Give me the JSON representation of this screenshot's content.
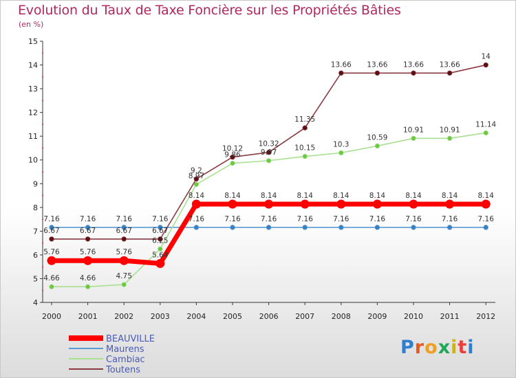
{
  "title": "Evolution du Taux de Taxe Foncière sur les Propriétés Bâties",
  "unit": "(en %)",
  "logo": {
    "letters": [
      "P",
      "r",
      "o",
      "x",
      "i",
      "t",
      "i"
    ],
    "colors": [
      "#2f7fd0",
      "#e85a1c",
      "#f0a020",
      "#1fa85a",
      "#d4b400",
      "#e8403c",
      "#2f7fd0"
    ]
  },
  "chart_data": {
    "type": "line",
    "x": [
      "2000",
      "2001",
      "2002",
      "2003",
      "2004",
      "2005",
      "2006",
      "2007",
      "2008",
      "2009",
      "2010",
      "2011",
      "2012"
    ],
    "ylim": [
      4,
      15
    ],
    "yticks": [
      4,
      5,
      6,
      7,
      8,
      9,
      10,
      11,
      12,
      13,
      14,
      15
    ],
    "grid": false,
    "legend_position": "bottom-left",
    "series": [
      {
        "name": "Maurens",
        "color": "#5b9bd5",
        "marker": "#3a7fc0",
        "values": [
          7.16,
          7.16,
          7.16,
          7.16,
          7.16,
          7.16,
          7.16,
          7.16,
          7.16,
          7.16,
          7.16,
          7.16,
          7.16
        ],
        "labels": [
          "7.16",
          "7.16",
          "7.16",
          "7.16",
          "7.16",
          "7.16",
          "7.16",
          "7.16",
          "7.16",
          "7.16",
          "7.16",
          "7.16",
          "7.16"
        ]
      },
      {
        "name": "Cambiac",
        "color": "#a8e090",
        "marker": "#6cc840",
        "values": [
          4.66,
          4.66,
          4.75,
          6.25,
          8.97,
          9.86,
          9.97,
          10.15,
          10.3,
          10.59,
          10.91,
          10.91,
          11.14
        ],
        "labels": [
          "4.66",
          "4.66",
          "4.75",
          "6.25",
          "8.97",
          "9.86",
          "9.97",
          "10.15",
          "10.3",
          "10.59",
          "10.91",
          "10.91",
          "11.14"
        ]
      },
      {
        "name": "Toutens",
        "color": "#8b3a40",
        "marker": "#5a1014",
        "values": [
          6.67,
          6.67,
          6.67,
          6.67,
          9.2,
          10.12,
          10.32,
          11.35,
          13.66,
          13.66,
          13.66,
          13.66,
          14
        ],
        "labels": [
          "6.67",
          "6.67",
          "6.67",
          "6.67",
          "9.2",
          "10.12",
          "10.32",
          "11.35",
          "13.66",
          "13.66",
          "13.66",
          "13.66",
          "14"
        ]
      },
      {
        "name": "BEAUVILLE",
        "color": "#ff0000",
        "marker": "#ff0000",
        "values": [
          5.76,
          5.76,
          5.76,
          5.64,
          8.14,
          8.14,
          8.14,
          8.14,
          8.14,
          8.14,
          8.14,
          8.14,
          8.14
        ],
        "labels": [
          "5.76",
          "5.76",
          "5.76",
          "5.64",
          "8.14",
          "8.14",
          "8.14",
          "8.14",
          "8.14",
          "8.14",
          "8.14",
          "8.14",
          "8.14"
        ]
      }
    ],
    "legend_order": [
      "BEAUVILLE",
      "Maurens",
      "Cambiac",
      "Toutens"
    ]
  }
}
